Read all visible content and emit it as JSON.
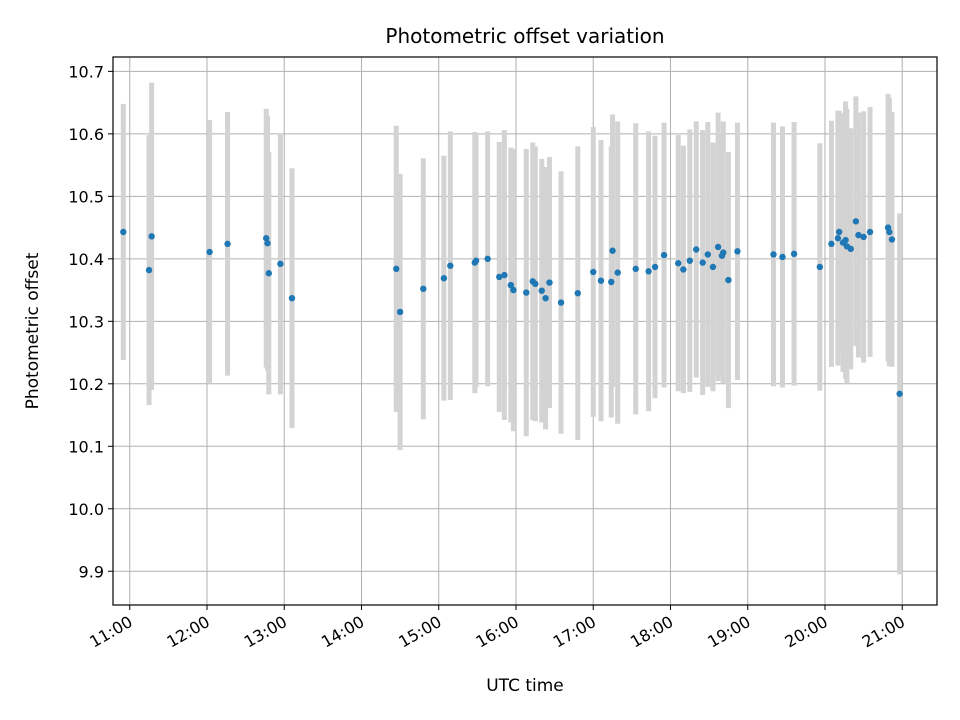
{
  "chart_data": {
    "type": "scatter",
    "title": "Photometric offset variation",
    "xlabel": "UTC time",
    "ylabel": "Photometric offset",
    "grid": true,
    "xlim": [
      "10:47",
      "21:27"
    ],
    "ylim": [
      9.846,
      10.723
    ],
    "x_ticks": [
      "11:00",
      "12:00",
      "13:00",
      "14:00",
      "15:00",
      "16:00",
      "17:00",
      "18:00",
      "19:00",
      "20:00",
      "21:00"
    ],
    "y_ticks": [
      "9.9",
      "10.0",
      "10.1",
      "10.2",
      "10.3",
      "10.4",
      "10.5",
      "10.6",
      "10.7"
    ],
    "colors": {
      "point": "#1f77b4",
      "errorbar": "#d3d3d3",
      "grid": "#b0b0b0"
    },
    "series": [
      {
        "x": [
          "10:55",
          "11:15",
          "11:17",
          "12:02",
          "12:16",
          "12:46",
          "12:47",
          "12:48",
          "12:57",
          "13:06",
          "14:27",
          "14:30",
          "14:48",
          "15:04",
          "15:09",
          "15:28",
          "15:29",
          "15:38",
          "15:47",
          "15:51",
          "15:56",
          "15:58",
          "16:08",
          "16:13",
          "16:15",
          "16:20",
          "16:23",
          "16:26",
          "16:35",
          "16:48",
          "17:00",
          "17:06",
          "17:14",
          "17:15",
          "17:19",
          "17:33",
          "17:43",
          "17:48",
          "17:55",
          "18:06",
          "18:10",
          "18:15",
          "18:20",
          "18:25",
          "18:29",
          "18:33",
          "18:37",
          "18:40",
          "18:41",
          "18:45",
          "18:52",
          "19:20",
          "19:27",
          "19:36",
          "19:56",
          "20:05",
          "20:10",
          "20:11",
          "20:14",
          "20:16",
          "20:17",
          "20:20",
          "20:24",
          "20:26",
          "20:30",
          "20:35",
          "20:49",
          "20:50",
          "20:52",
          "20:58"
        ],
        "y": [
          10.443,
          10.382,
          10.436,
          10.411,
          10.424,
          10.433,
          10.425,
          10.377,
          10.392,
          10.337,
          10.384,
          10.315,
          10.352,
          10.369,
          10.389,
          10.394,
          10.397,
          10.4,
          10.371,
          10.374,
          10.358,
          10.35,
          10.346,
          10.364,
          10.36,
          10.349,
          10.337,
          10.362,
          10.33,
          10.345,
          10.379,
          10.365,
          10.363,
          10.413,
          10.378,
          10.384,
          10.38,
          10.387,
          10.406,
          10.393,
          10.383,
          10.397,
          10.415,
          10.394,
          10.407,
          10.387,
          10.419,
          10.405,
          10.41,
          10.366,
          10.412,
          10.407,
          10.403,
          10.408,
          10.387,
          10.424,
          10.433,
          10.443,
          10.426,
          10.43,
          10.42,
          10.416,
          10.46,
          10.438,
          10.435,
          10.443,
          10.45,
          10.443,
          10.431,
          10.184
        ],
        "err": [
          0.205,
          0.216,
          0.246,
          0.211,
          0.211,
          0.207,
          0.204,
          0.194,
          0.209,
          0.208,
          0.229,
          0.221,
          0.209,
          0.196,
          0.215,
          0.209,
          0.203,
          0.204,
          0.216,
          0.232,
          0.22,
          0.226,
          0.23,
          0.222,
          0.22,
          0.211,
          0.21,
          0.201,
          0.21,
          0.235,
          0.232,
          0.225,
          0.217,
          0.218,
          0.242,
          0.233,
          0.224,
          0.21,
          0.212,
          0.205,
          0.198,
          0.21,
          0.205,
          0.212,
          0.212,
          0.199,
          0.215,
          0.193,
          0.21,
          0.205,
          0.206,
          0.211,
          0.209,
          0.211,
          0.198,
          0.197,
          0.204,
          0.194,
          0.207,
          0.222,
          0.22,
          0.193,
          0.2,
          0.196,
          0.201,
          0.2,
          0.214,
          0.215,
          0.204,
          0.289
        ]
      }
    ]
  }
}
